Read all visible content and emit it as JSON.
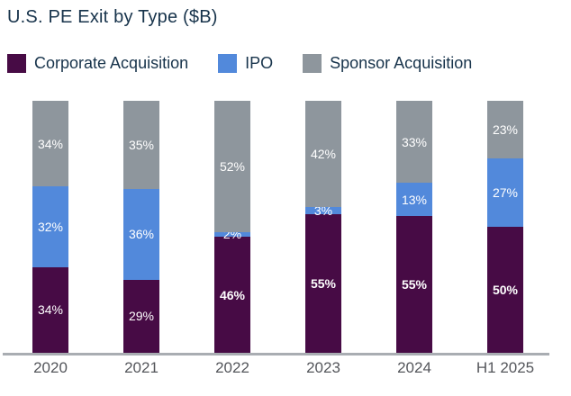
{
  "chart_data": {
    "type": "bar",
    "stacked": true,
    "percent_share": true,
    "title": "U.S. PE Exit by Type ($B)",
    "categories": [
      "2020",
      "2021",
      "2022",
      "2023",
      "2024",
      "H1 2025"
    ],
    "series": [
      {
        "name": "Corporate Acquisition",
        "color": "#470B45",
        "values": [
          34,
          29,
          46,
          55,
          55,
          50
        ],
        "label_bold": [
          false,
          false,
          true,
          true,
          true,
          true
        ]
      },
      {
        "name": "IPO",
        "color": "#5289DB",
        "values": [
          32,
          36,
          2,
          3,
          13,
          27
        ]
      },
      {
        "name": "Sponsor Acquisition",
        "color": "#8E969D",
        "values": [
          34,
          35,
          52,
          42,
          33,
          23
        ]
      }
    ],
    "value_suffix": "%",
    "ylim": [
      0,
      100
    ],
    "grid": false,
    "legend_position": "top",
    "xlabel": "",
    "ylabel": "",
    "segment_label_color": "#FFFFFF",
    "title_text_color": "#17334B",
    "axis_line_color": "#A9ADB2",
    "axis_label_color": "#54565B"
  }
}
